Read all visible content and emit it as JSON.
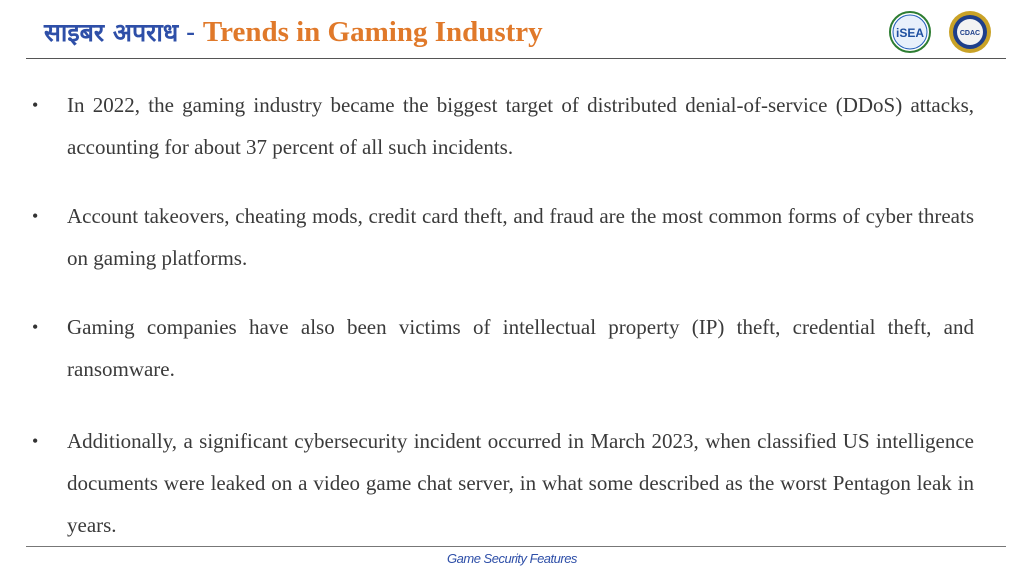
{
  "header": {
    "title_hindi": "साइबर अपराध",
    "separator": "-",
    "title_main": "Trends in Gaming Industry",
    "logos": [
      {
        "name": "isea-logo",
        "text": "iSEA"
      },
      {
        "name": "cdac-logo",
        "text": "CDAC"
      }
    ]
  },
  "bullets": [
    "In 2022, the gaming industry became the biggest target of distributed denial-of-service (DDoS) attacks, accounting for about 37 percent of all such incidents.",
    "Account takeovers, cheating mods, credit card theft, and fraud are the most common forms of cyber threats on gaming platforms.",
    "Gaming companies have also been victims of intellectual property (IP) theft, credential theft, and ransomware.",
    "Additionally, a significant cybersecurity incident occurred in March 2023, when classified US intelligence documents were leaked on a video game chat server, in what some described as the worst Pentagon leak in years."
  ],
  "footer": {
    "text": "Game Security Features"
  },
  "colors": {
    "title_blue": "#2e4fa8",
    "title_orange": "#e0792a",
    "body_text": "#3a3a3a"
  }
}
